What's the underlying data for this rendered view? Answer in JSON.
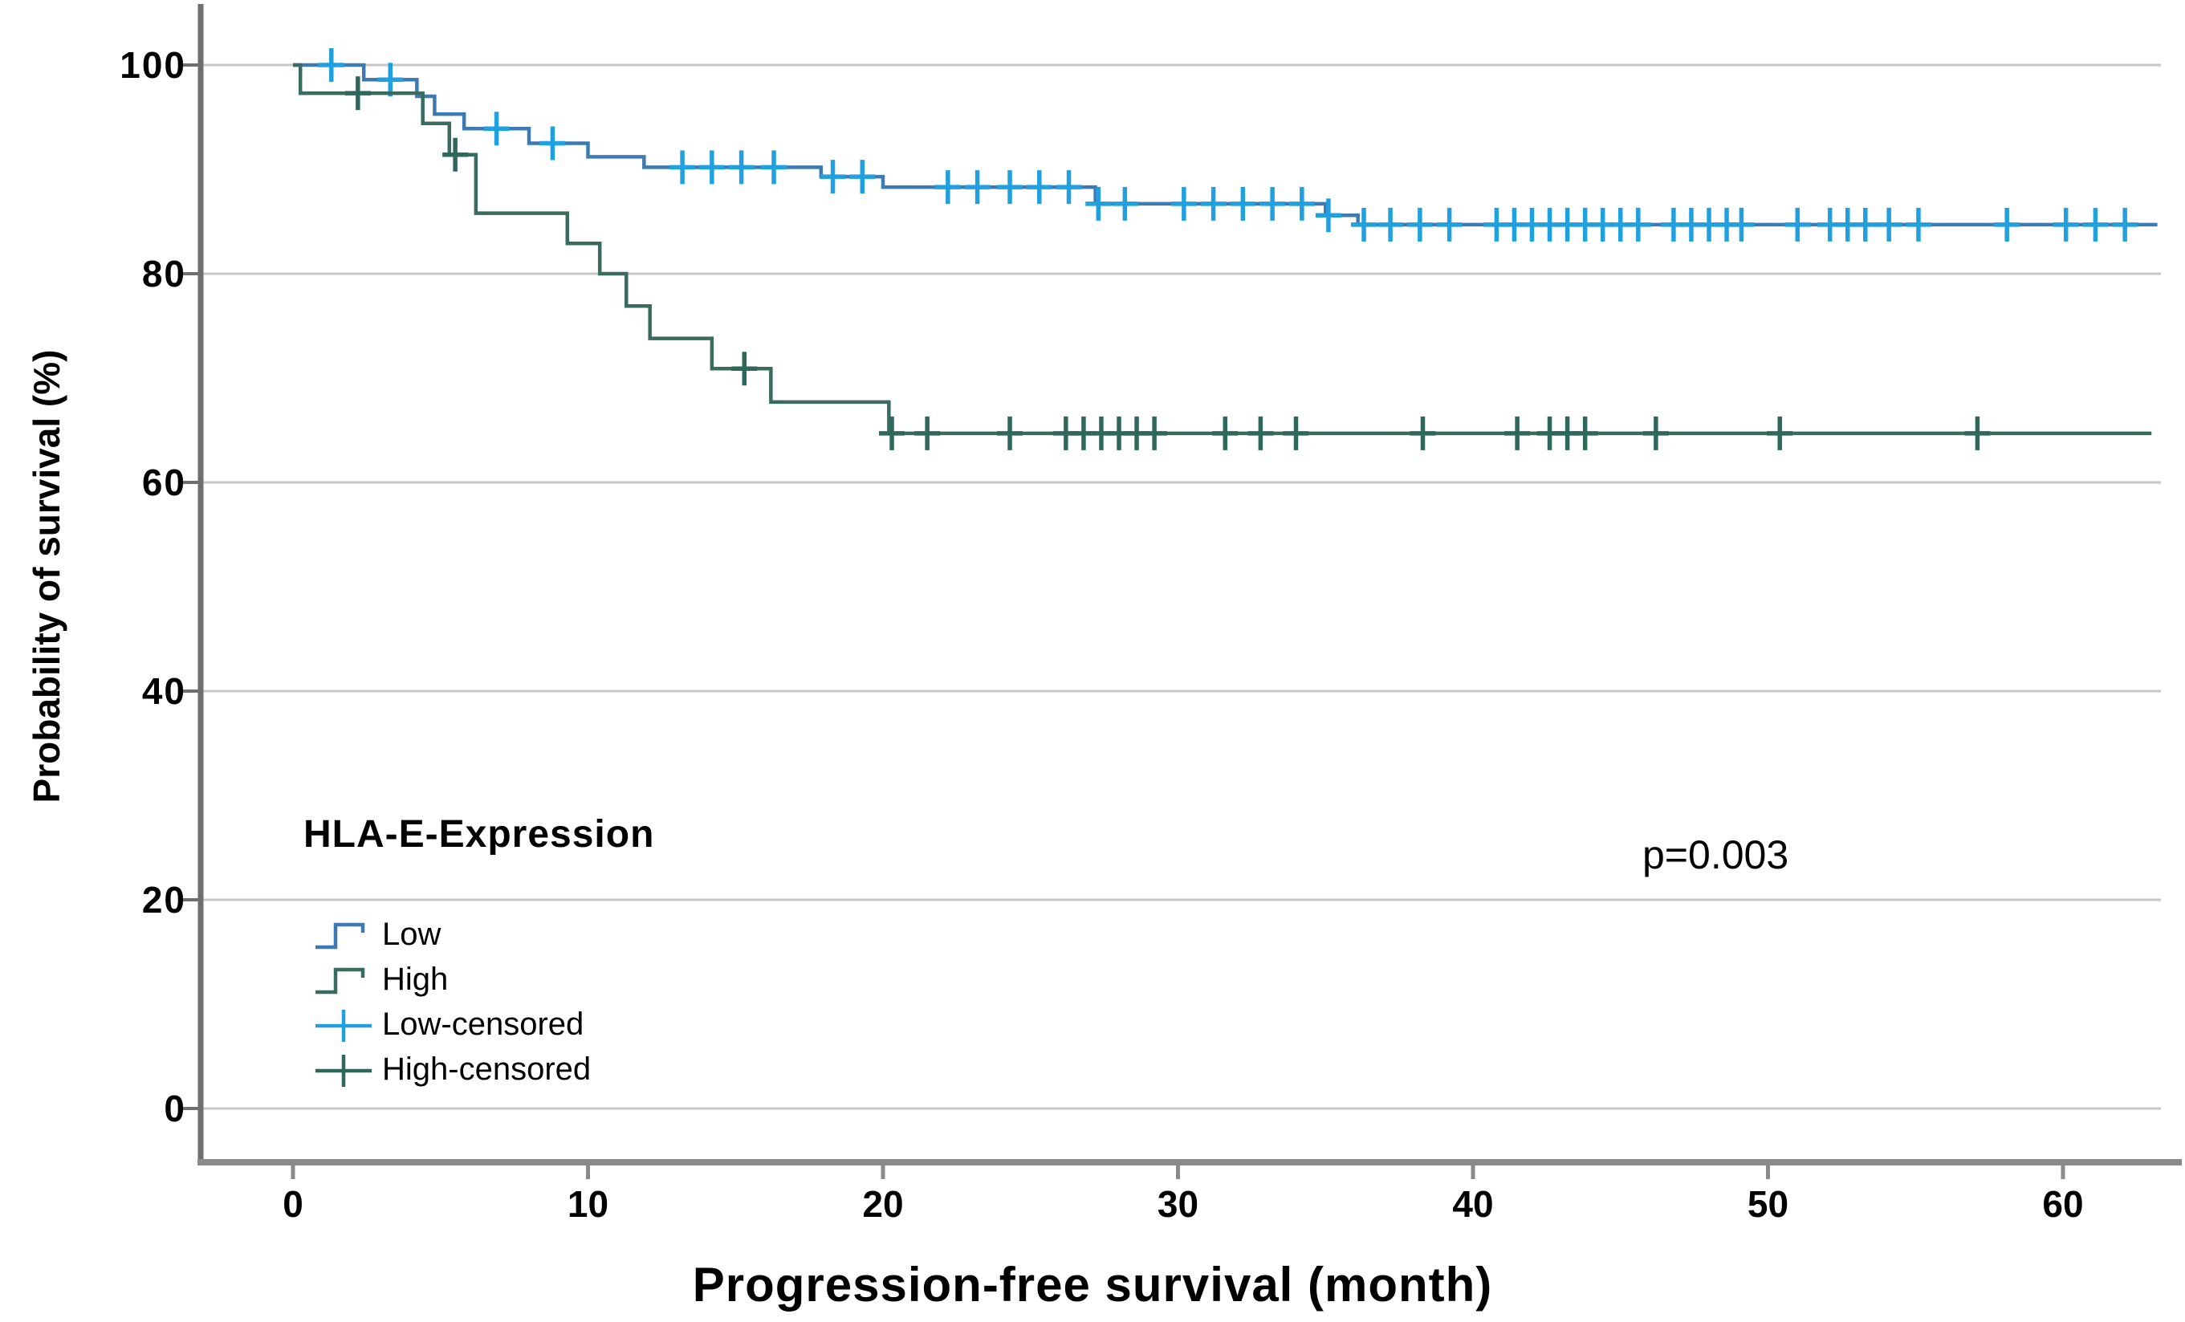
{
  "chart_data": {
    "type": "line",
    "subtype": "kaplan-meier-step-curves",
    "title": "",
    "xlabel": "Progression-free survival (month)",
    "ylabel": "Probability of survival (%)",
    "annotation": "p=0.003",
    "xticks": [
      0,
      10,
      20,
      30,
      40,
      50,
      60
    ],
    "yticks": [
      0,
      20,
      40,
      60,
      80,
      100
    ],
    "xlim": [
      -3.1,
      64.1
    ],
    "ylim": [
      -5.2,
      105.6
    ],
    "grid": "horizontal",
    "legend": {
      "title": "HLA-E-Expression",
      "position": "inside-lower-left",
      "entries": [
        {
          "label": "Low",
          "symbol": "step",
          "series": "Low"
        },
        {
          "label": "High",
          "symbol": "step",
          "series": "High"
        },
        {
          "label": "Low-censored",
          "symbol": "plus",
          "series": "Low"
        },
        {
          "label": "High-censored",
          "symbol": "plus",
          "series": "High"
        }
      ]
    },
    "axis_colors": {
      "grid": "#c7c7c7",
      "spine_left": "#6f6f6f",
      "spine_bottom": "#8a8a8a",
      "text": "#000000"
    },
    "series": [
      {
        "name": "Low",
        "color": "#3d7ab2",
        "censor_color": "#21a0e0",
        "steps": [
          [
            0,
            100
          ],
          [
            2.4,
            98.6
          ],
          [
            4.2,
            97.0
          ],
          [
            4.8,
            95.3
          ],
          [
            5.8,
            93.9
          ],
          [
            8.0,
            92.5
          ],
          [
            10.0,
            91.2
          ],
          [
            11.9,
            90.2
          ],
          [
            17.9,
            89.3
          ],
          [
            20.0,
            88.3
          ],
          [
            27.2,
            86.7
          ],
          [
            35.0,
            85.6
          ],
          [
            36.1,
            84.7
          ]
        ],
        "end_month": 63.2,
        "censor_months": [
          1.3,
          3.3,
          6.9,
          8.8,
          13.2,
          14.2,
          15.2,
          16.3,
          18.3,
          19.3,
          22.2,
          23.2,
          24.3,
          25.3,
          26.3,
          27.3,
          28.2,
          30.2,
          31.2,
          32.2,
          33.2,
          34.2,
          35.1,
          36.3,
          37.2,
          38.2,
          39.2,
          40.8,
          41.4,
          42.0,
          42.6,
          43.2,
          43.8,
          44.4,
          45.0,
          45.6,
          46.8,
          47.4,
          48.0,
          48.6,
          49.1,
          51.0,
          52.1,
          52.7,
          53.3,
          54.1,
          55.1,
          58.1,
          60.1,
          61.1,
          62.1
        ]
      },
      {
        "name": "High",
        "color": "#3a6b60",
        "censor_color": "#2e685c",
        "steps": [
          [
            0,
            100
          ],
          [
            0.25,
            97.3
          ],
          [
            4.4,
            94.4
          ],
          [
            5.3,
            91.4
          ],
          [
            6.2,
            85.8
          ],
          [
            9.3,
            82.9
          ],
          [
            10.4,
            80.0
          ],
          [
            11.3,
            76.9
          ],
          [
            12.1,
            73.8
          ],
          [
            14.2,
            70.9
          ],
          [
            16.2,
            67.7
          ],
          [
            20.2,
            64.7
          ]
        ],
        "end_month": 63.0,
        "censor_months": [
          2.2,
          5.5,
          15.3,
          20.3,
          21.5,
          24.3,
          26.2,
          26.8,
          27.4,
          28.0,
          28.6,
          29.2,
          31.6,
          32.8,
          34.0,
          38.3,
          41.5,
          42.6,
          43.2,
          43.8,
          46.2,
          50.4,
          57.1
        ]
      }
    ]
  }
}
